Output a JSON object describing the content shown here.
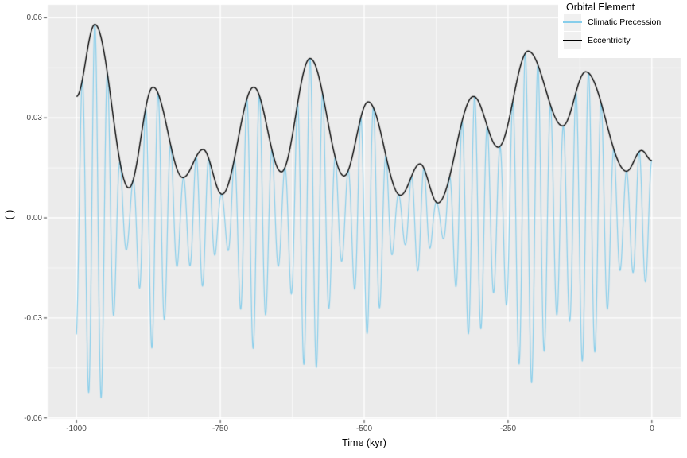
{
  "figure": {
    "background": "#FFFFFF",
    "panel_background": "#EBEBEB",
    "grid_color": "#FFFFFF",
    "axis_text_color": "#4D4D4D",
    "tick_mark_color": "#333333"
  },
  "axes": {
    "x": {
      "title": "Time (kyr)",
      "tick_labels": [
        "-1000",
        "-750",
        "-500",
        "-250",
        "0"
      ],
      "tick_values": [
        -1000,
        -750,
        -500,
        -250,
        0
      ],
      "minor_values": [
        -875,
        -625,
        -375,
        -125
      ],
      "range": [
        -1050,
        50
      ]
    },
    "y": {
      "title": "(-)",
      "tick_labels": [
        "0.06",
        "0.03",
        "0.00",
        "-0.03",
        "-0.06"
      ],
      "tick_values": [
        0.06,
        0.03,
        0,
        -0.03,
        -0.06
      ],
      "minor_values": [
        0.045,
        0.015,
        -0.015,
        -0.045
      ],
      "range": [
        -0.0603,
        0.0639
      ]
    }
  },
  "legend": {
    "title": "Orbital Element",
    "position": "top-right",
    "key_background": "#F0F0F0",
    "items": [
      {
        "label": "Climatic Precession",
        "color": "#87CEEB"
      },
      {
        "label": "Eccentricity",
        "color": "#000000"
      }
    ]
  },
  "chart_data": {
    "type": "line",
    "title": "",
    "xlabel": "Time (kyr)",
    "ylabel": "(-)",
    "xlim": [
      -1050,
      50
    ],
    "ylim": [
      -0.0603,
      0.0639
    ],
    "x_unit": "kyr",
    "grid": "major-and-minor",
    "legend_position": "top-right",
    "series": [
      {
        "name": "Eccentricity",
        "color": "#000000",
        "line_width": 1.4,
        "interpolation": "smooth-through-extremes",
        "points": [
          [
            -1000,
            0.0364
          ],
          [
            -968,
            0.058
          ],
          [
            -909,
            0.009
          ],
          [
            -867,
            0.0392
          ],
          [
            -815,
            0.0121
          ],
          [
            -780,
            0.0205
          ],
          [
            -747,
            0.0071
          ],
          [
            -692,
            0.0392
          ],
          [
            -644,
            0.0138
          ],
          [
            -594,
            0.0478
          ],
          [
            -535,
            0.0126
          ],
          [
            -493,
            0.0348
          ],
          [
            -437,
            0.0068
          ],
          [
            -403,
            0.0162
          ],
          [
            -372,
            0.0045
          ],
          [
            -310,
            0.0364
          ],
          [
            -267,
            0.0212
          ],
          [
            -215,
            0.05
          ],
          [
            -155,
            0.0276
          ],
          [
            -115,
            0.0438
          ],
          [
            -44,
            0.014
          ],
          [
            -18,
            0.0202
          ],
          [
            0,
            0.0172
          ]
        ]
      },
      {
        "name": "Climatic Precession",
        "color": "#87CEEB",
        "line_width": 1.2,
        "derived": "eccentricity_envelope_times_cosine",
        "formula": "p(t) = e(t) * cos(2*pi*(t - carrier_peak_t)/carrier_period_kyr)",
        "carrier_period_kyr": 22,
        "carrier_peak_t": 0,
        "t_start": -1000,
        "t_end": 0,
        "t_step": 0.25,
        "envelope_series": "Eccentricity"
      }
    ]
  }
}
